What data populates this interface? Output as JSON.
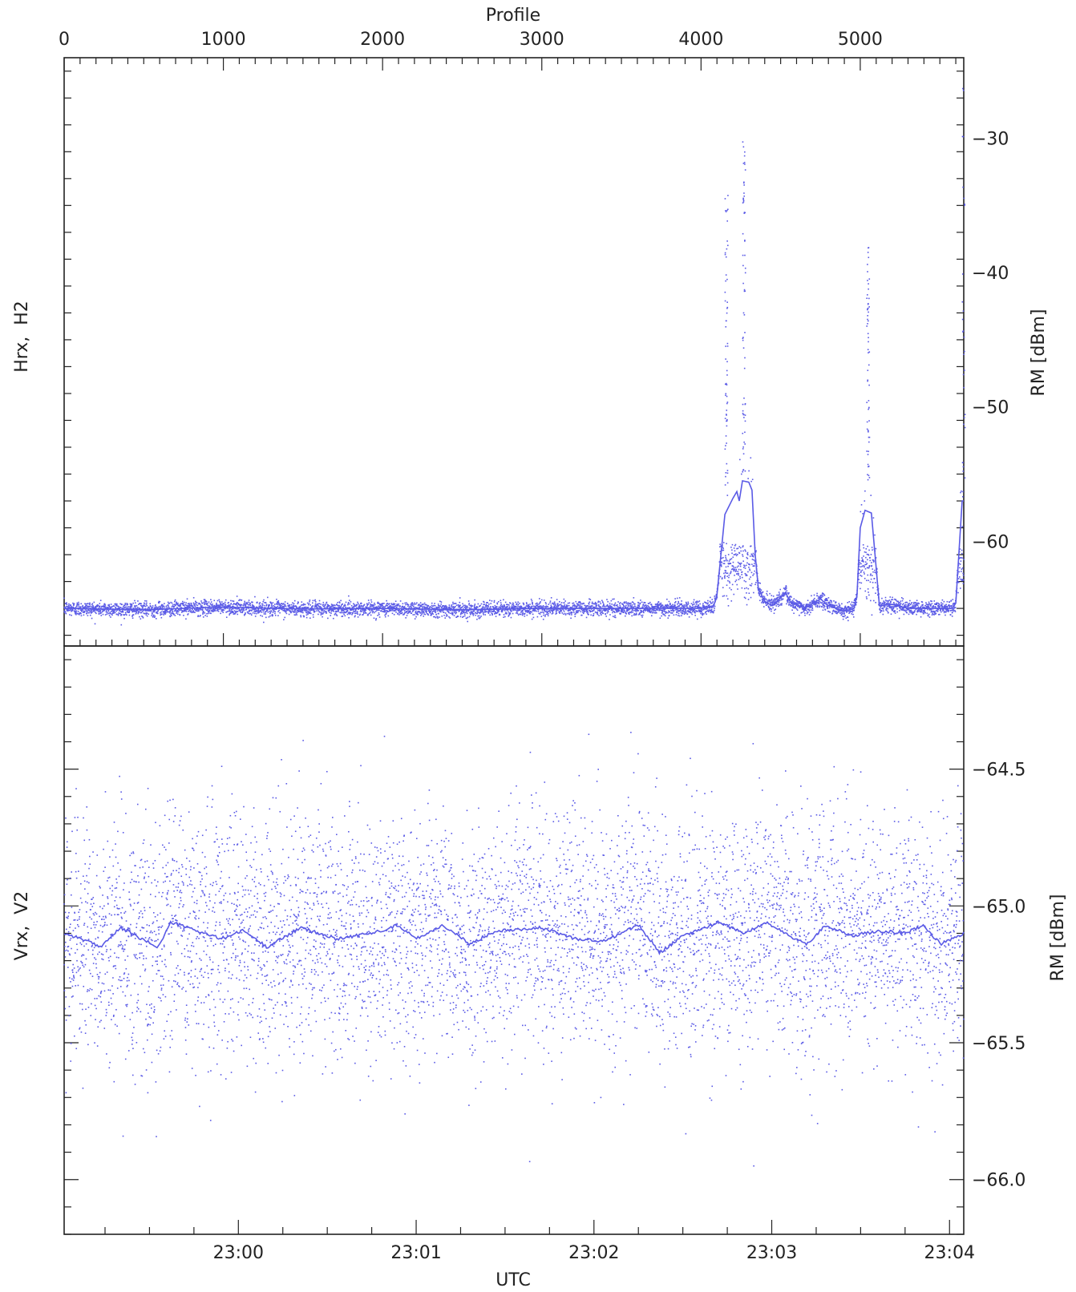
{
  "colors": {
    "series": "#5a5ae6",
    "axis": "#222222",
    "background": "#ffffff"
  },
  "labels": {
    "top_axis_title": "Profile",
    "bottom_axis_title": "UTC",
    "top_panel_left_label": "Hrx,  H2",
    "bottom_panel_left_label": "Vrx,  V2",
    "top_panel_right_label": "RM [dBm]",
    "bottom_panel_right_label": "RM [dBm]"
  },
  "chart_data": [
    {
      "type": "scatter",
      "panel": "top",
      "x_axis": {
        "label": "Profile",
        "ticks": [
          0,
          1000,
          2000,
          3000,
          4000,
          5000
        ],
        "range": [
          0,
          5650
        ]
      },
      "y_axis": {
        "label": "RM [dBm]",
        "ticks": [
          -30,
          -40,
          -50,
          -60
        ],
        "range": [
          -67.8,
          -24
        ]
      },
      "left_label": "Hrx,  H2",
      "series": [
        {
          "style": "points",
          "baseline": -65,
          "noise_spread": 0.5,
          "spikes": [
            {
              "x": 4160,
              "peak": -32.5
            },
            {
              "x": 4270,
              "peak": -30.2
            },
            {
              "x": 5050,
              "peak": -37.7
            },
            {
              "x": 5650,
              "peak": -26
            }
          ]
        },
        {
          "style": "line",
          "points": [
            [
              0,
              -65
            ],
            [
              500,
              -65.1
            ],
            [
              1000,
              -64.9
            ],
            [
              1500,
              -65.05
            ],
            [
              2000,
              -65
            ],
            [
              2500,
              -65.1
            ],
            [
              3000,
              -65
            ],
            [
              3500,
              -65
            ],
            [
              4000,
              -65
            ],
            [
              4080,
              -64.8
            ],
            [
              4100,
              -64
            ],
            [
              4150,
              -58
            ],
            [
              4200,
              -56.8
            ],
            [
              4225,
              -56.3
            ],
            [
              4240,
              -57
            ],
            [
              4260,
              -55.5
            ],
            [
              4300,
              -55.6
            ],
            [
              4320,
              -56.2
            ],
            [
              4340,
              -61
            ],
            [
              4360,
              -63.5
            ],
            [
              4400,
              -64.5
            ],
            [
              4450,
              -64.8
            ],
            [
              4500,
              -64.2
            ],
            [
              4530,
              -63.8
            ],
            [
              4560,
              -64.5
            ],
            [
              4650,
              -65
            ],
            [
              4750,
              -64.3
            ],
            [
              4800,
              -64.8
            ],
            [
              4900,
              -65.2
            ],
            [
              4960,
              -65
            ],
            [
              4980,
              -64
            ],
            [
              5000,
              -59
            ],
            [
              5030,
              -57.7
            ],
            [
              5070,
              -57.9
            ],
            [
              5100,
              -62
            ],
            [
              5120,
              -64.8
            ],
            [
              5200,
              -64.7
            ],
            [
              5300,
              -65
            ],
            [
              5400,
              -65
            ],
            [
              5500,
              -65
            ],
            [
              5580,
              -65
            ],
            [
              5600,
              -64.6
            ],
            [
              5640,
              -57
            ],
            [
              5650,
              -57
            ]
          ]
        }
      ]
    },
    {
      "type": "scatter",
      "panel": "bottom",
      "x_axis": {
        "label": "UTC",
        "ticks": [
          "23:00",
          "23:01",
          "23:02",
          "23:03",
          "23:04"
        ],
        "range_minutes": [
          -0.98,
          4.08
        ]
      },
      "y_axis": {
        "label": "RM [dBm]",
        "ticks": [
          -64.5,
          -65.0,
          -65.5,
          -66.0
        ],
        "range": [
          -66.2,
          -64.05
        ]
      },
      "left_label": "Vrx,  V2",
      "series": [
        {
          "style": "points",
          "center": -65.1,
          "noise_sigma": 0.22
        },
        {
          "style": "line",
          "points": [
            [
              -0.98,
              -65.1
            ],
            [
              -0.88,
              -65.12
            ],
            [
              -0.78,
              -65.15
            ],
            [
              -0.66,
              -65.08
            ],
            [
              -0.55,
              -65.12
            ],
            [
              -0.45,
              -65.15
            ],
            [
              -0.38,
              -65.06
            ],
            [
              -0.28,
              -65.08
            ],
            [
              -0.1,
              -65.12
            ],
            [
              0.03,
              -65.09
            ],
            [
              0.16,
              -65.15
            ],
            [
              0.35,
              -65.08
            ],
            [
              0.55,
              -65.12
            ],
            [
              0.75,
              -65.1
            ],
            [
              0.9,
              -65.07
            ],
            [
              1.0,
              -65.12
            ],
            [
              1.15,
              -65.07
            ],
            [
              1.3,
              -65.14
            ],
            [
              1.45,
              -65.09
            ],
            [
              1.7,
              -65.08
            ],
            [
              1.9,
              -65.12
            ],
            [
              2.05,
              -65.13
            ],
            [
              2.25,
              -65.07
            ],
            [
              2.37,
              -65.17
            ],
            [
              2.5,
              -65.11
            ],
            [
              2.7,
              -65.06
            ],
            [
              2.85,
              -65.1
            ],
            [
              2.97,
              -65.06
            ],
            [
              3.1,
              -65.11
            ],
            [
              3.2,
              -65.14
            ],
            [
              3.3,
              -65.07
            ],
            [
              3.45,
              -65.11
            ],
            [
              3.6,
              -65.09
            ],
            [
              3.75,
              -65.1
            ],
            [
              3.85,
              -65.07
            ],
            [
              3.95,
              -65.14
            ],
            [
              4.08,
              -65.1
            ]
          ]
        }
      ]
    }
  ]
}
